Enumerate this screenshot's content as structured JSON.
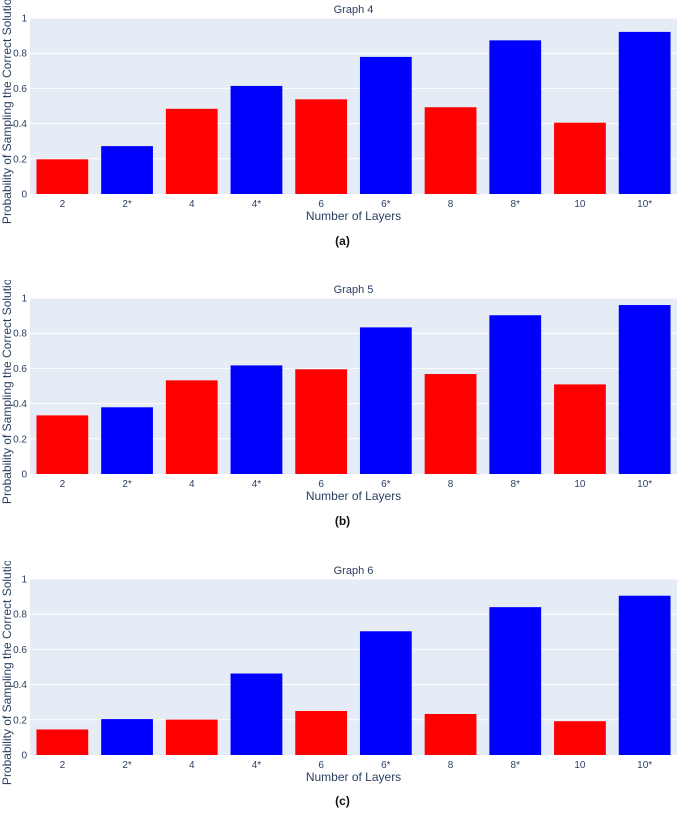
{
  "colors": {
    "red": "#ff0000",
    "blue": "#0000ff",
    "plot_bg": "#e5ecf6",
    "grid": "#ffffff",
    "text": "#2a3f5f"
  },
  "chart_data": [
    {
      "type": "bar",
      "title": "Graph 4",
      "caption": "(a)",
      "xlabel": "Number of Layers",
      "ylabel": "Probability of Sampling the Correct Solution",
      "ylim": [
        0,
        1
      ],
      "yticks": [
        "0",
        "0.2",
        "0.4",
        "0.6",
        "0.8",
        "1"
      ],
      "categories": [
        "2",
        "2*",
        "4",
        "4*",
        "6",
        "6*",
        "8",
        "8*",
        "10",
        "10*"
      ],
      "values": [
        0.197,
        0.272,
        0.484,
        0.614,
        0.538,
        0.779,
        0.493,
        0.873,
        0.405,
        0.921
      ],
      "bar_colors": [
        "red",
        "blue",
        "red",
        "blue",
        "red",
        "blue",
        "red",
        "blue",
        "red",
        "blue"
      ]
    },
    {
      "type": "bar",
      "title": "Graph 5",
      "caption": "(b)",
      "xlabel": "Number of Layers",
      "ylabel": "Probability of Sampling the Correct Solution",
      "ylim": [
        0,
        1
      ],
      "yticks": [
        "0",
        "0.2",
        "0.4",
        "0.6",
        "0.8",
        "1"
      ],
      "categories": [
        "2",
        "2*",
        "4",
        "4*",
        "6",
        "6*",
        "8",
        "8*",
        "10",
        "10*"
      ],
      "values": [
        0.333,
        0.379,
        0.532,
        0.617,
        0.595,
        0.833,
        0.568,
        0.902,
        0.509,
        0.96
      ],
      "bar_colors": [
        "red",
        "blue",
        "red",
        "blue",
        "red",
        "blue",
        "red",
        "blue",
        "red",
        "blue"
      ]
    },
    {
      "type": "bar",
      "title": "Graph 6",
      "caption": "(c)",
      "xlabel": "Number of Layers",
      "ylabel": "Probability of Sampling the Correct Solution",
      "ylim": [
        0,
        1
      ],
      "yticks": [
        "0",
        "0.2",
        "0.4",
        "0.6",
        "0.8",
        "1"
      ],
      "categories": [
        "2",
        "2*",
        "4",
        "4*",
        "6",
        "6*",
        "8",
        "8*",
        "10",
        "10*"
      ],
      "values": [
        0.145,
        0.204,
        0.201,
        0.463,
        0.25,
        0.703,
        0.233,
        0.84,
        0.192,
        0.905
      ],
      "bar_colors": [
        "red",
        "blue",
        "red",
        "blue",
        "red",
        "blue",
        "red",
        "blue",
        "red",
        "blue"
      ]
    }
  ]
}
